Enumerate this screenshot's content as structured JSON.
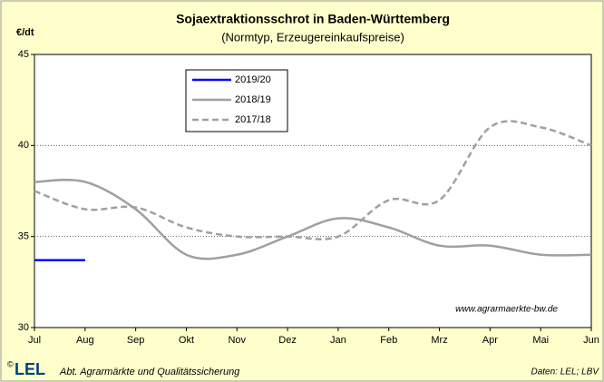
{
  "chart_data": {
    "type": "line",
    "title": "Sojaextraktionsschrot in Baden-Württemberg",
    "subtitle": "(Normtyp, Erzeugereinkaufspreise)",
    "y_label": "€/dt",
    "annotation": "www.agrarmaerkte-bw.de",
    "footer": "Abt. Agrarmärkte und Qualitätssicherung",
    "source": "Daten: LEL; LBV",
    "logo": "LEL",
    "copyright": "©",
    "categories": [
      "Jul",
      "Aug",
      "Sep",
      "Okt",
      "Nov",
      "Dez",
      "Jan",
      "Feb",
      "Mrz",
      "Apr",
      "Mai",
      "Jun"
    ],
    "series": [
      {
        "name": "2019/20",
        "color": "#0000ff",
        "dash": false,
        "values": [
          33.7,
          33.7,
          null,
          null,
          null,
          null,
          null,
          null,
          null,
          null,
          null,
          null
        ]
      },
      {
        "name": "2018/19",
        "color": "#a0a0a0",
        "dash": false,
        "values": [
          38,
          38,
          36.5,
          34,
          34,
          35,
          36,
          35.5,
          34.5,
          34.5,
          34,
          34
        ]
      },
      {
        "name": "2017/18",
        "color": "#a0a0a0",
        "dash": true,
        "values": [
          37.5,
          36.5,
          36.6,
          35.5,
          35,
          35,
          35,
          37,
          37,
          41,
          41,
          40
        ]
      }
    ],
    "ylim": [
      30,
      45
    ],
    "yticks": [
      30,
      35,
      40,
      45
    ],
    "grid": true
  }
}
